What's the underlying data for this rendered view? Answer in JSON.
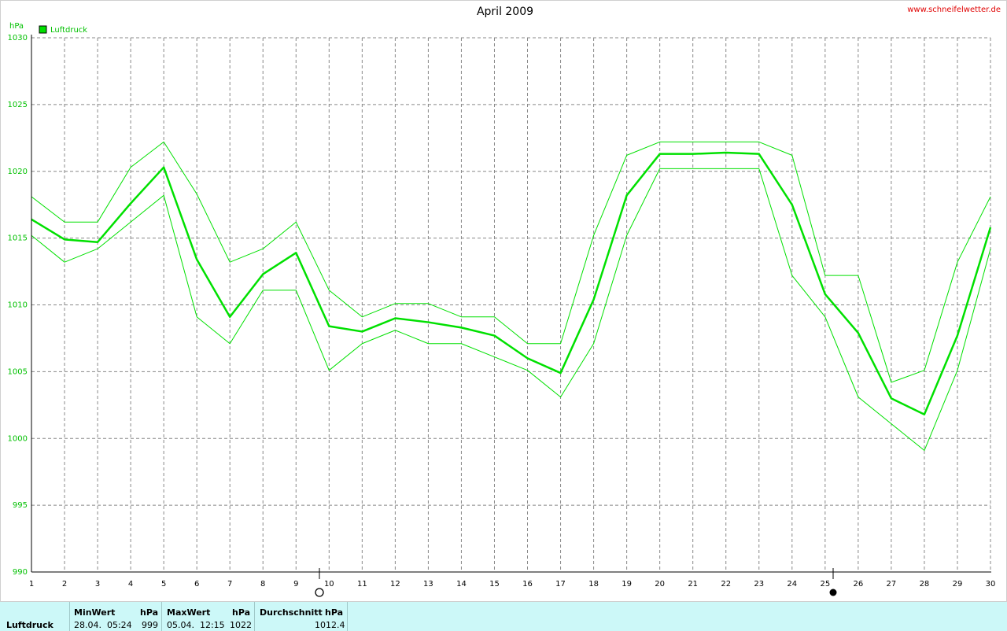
{
  "chart_data": {
    "type": "line",
    "title": "April 2009",
    "source": "www.schneifelwetter.de",
    "y_label": "hPa",
    "x": [
      1,
      2,
      3,
      4,
      5,
      6,
      7,
      8,
      9,
      10,
      11,
      12,
      13,
      14,
      15,
      16,
      17,
      18,
      19,
      20,
      21,
      22,
      23,
      24,
      25,
      26,
      27,
      28,
      29,
      30
    ],
    "xlim": [
      1,
      30
    ],
    "xticks": [
      1,
      2,
      3,
      4,
      5,
      6,
      7,
      8,
      9,
      10,
      11,
      12,
      13,
      14,
      15,
      16,
      17,
      18,
      19,
      20,
      21,
      22,
      23,
      24,
      25,
      26,
      27,
      28,
      29,
      30
    ],
    "ylim": [
      990,
      1030
    ],
    "yticks": [
      990,
      995,
      1000,
      1005,
      1010,
      1015,
      1020,
      1025,
      1030
    ],
    "grid": true,
    "legend": "top-left",
    "series": [
      {
        "name": "Luftdruck",
        "color": "#00e000",
        "values": [
          1016.4,
          1014.9,
          1014.7,
          1017.6,
          1020.3,
          1013.4,
          1009.1,
          1012.3,
          1013.9,
          1008.4,
          1008.0,
          1009.0,
          1008.7,
          1008.3,
          1007.7,
          1006.0,
          1004.9,
          1010.4,
          1018.2,
          1021.3,
          1021.3,
          1021.4,
          1021.3,
          1017.5,
          1010.8,
          1007.9,
          1003.0,
          1001.8,
          1007.7,
          1015.8
        ]
      },
      {
        "color": "#00e000",
        "values": [
          1018.1,
          1016.2,
          1016.2,
          1020.3,
          1022.2,
          1018.3,
          1013.2,
          1014.2,
          1016.2,
          1011.1,
          1009.1,
          1010.1,
          1010.1,
          1009.1,
          1009.1,
          1007.1,
          1007.1,
          1015.2,
          1021.2,
          1022.2,
          1022.2,
          1022.2,
          1022.2,
          1021.2,
          1012.2,
          1012.2,
          1004.2,
          1005.1,
          1013.2,
          1018.1
        ]
      },
      {
        "color": "#00e000",
        "values": [
          1015.2,
          1013.2,
          1014.2,
          1016.2,
          1018.2,
          1009.1,
          1007.1,
          1011.1,
          1011.1,
          1005.1,
          1007.1,
          1008.1,
          1007.1,
          1007.1,
          1006.1,
          1005.1,
          1003.1,
          1007.1,
          1015.2,
          1020.2,
          1020.2,
          1020.2,
          1020.2,
          1012.2,
          1009.1,
          1003.1,
          1001.1,
          999.1,
          1005.1,
          1014.2
        ]
      }
    ]
  },
  "summary": {
    "label": "Luftdruck",
    "min": {
      "header": "MinWert",
      "unit": "hPa",
      "time": "28.04.  05:24",
      "value": "999"
    },
    "max": {
      "header": "MaxWert",
      "unit": "hPa",
      "time": "05.04.  12:15",
      "value": "1022"
    },
    "avg": {
      "header": "Durchschnitt",
      "unit": "hPa",
      "value": "1012.4"
    }
  }
}
